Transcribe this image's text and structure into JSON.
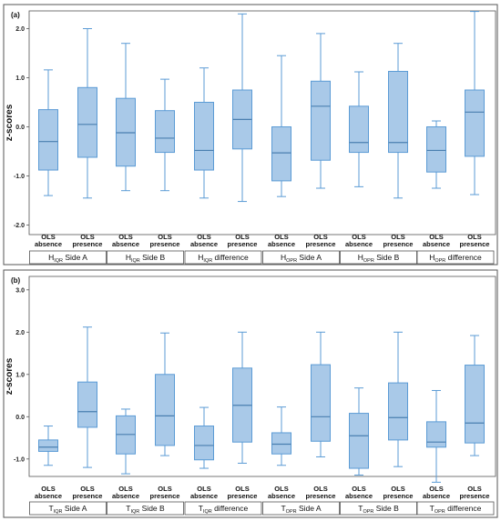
{
  "colors": {
    "box_fill": "#a9c9e8",
    "box_stroke": "#5b9bd5",
    "median": "#4a7fb0",
    "frame": "#555555"
  },
  "chart_data": [
    {
      "type": "boxplot",
      "panel_label": "(a)",
      "ylabel": "z-scores",
      "ylim": [
        -2.0,
        2.4
      ],
      "yticks": [
        2.0,
        1.0,
        0.0,
        -1.0,
        -2.0
      ],
      "ytick_labels": [
        "2.0",
        "1.0",
        "0.0",
        "-1.0",
        "-2.0"
      ],
      "groups": [
        {
          "main": "H",
          "sub": "IQR",
          "suffix": " Side A"
        },
        {
          "main": "H",
          "sub": "IQR",
          "suffix": " Side B"
        },
        {
          "main": "H",
          "sub": "IQR",
          "suffix": " difference"
        },
        {
          "main": "H",
          "sub": "OPR",
          "suffix": " Side A"
        },
        {
          "main": "H",
          "sub": "OPR",
          "suffix": " Side B"
        },
        {
          "main": "H",
          "sub": "OPR",
          "suffix": " difference"
        }
      ],
      "categories": [
        "OLS absence",
        "OLS presence"
      ],
      "boxes": [
        {
          "min": -1.4,
          "q1": -0.88,
          "median": -0.3,
          "q3": 0.35,
          "max": 1.16
        },
        {
          "min": -1.45,
          "q1": -0.62,
          "median": 0.05,
          "q3": 0.8,
          "max": 2.0
        },
        {
          "min": -1.3,
          "q1": -0.8,
          "median": -0.12,
          "q3": 0.58,
          "max": 1.7
        },
        {
          "min": -1.3,
          "q1": -0.52,
          "median": -0.23,
          "q3": 0.33,
          "max": 0.97
        },
        {
          "min": -1.45,
          "q1": -0.88,
          "median": -0.48,
          "q3": 0.5,
          "max": 1.2
        },
        {
          "min": -1.52,
          "q1": -0.45,
          "median": 0.15,
          "q3": 0.75,
          "max": 2.3
        },
        {
          "min": -1.42,
          "q1": -1.1,
          "median": -0.53,
          "q3": 0.0,
          "max": 1.45
        },
        {
          "min": -1.25,
          "q1": -0.68,
          "median": 0.42,
          "q3": 0.93,
          "max": 1.9
        },
        {
          "min": -1.22,
          "q1": -0.52,
          "median": -0.32,
          "q3": 0.42,
          "max": 1.12
        },
        {
          "min": -1.45,
          "q1": -0.52,
          "median": -0.32,
          "q3": 1.13,
          "max": 1.7
        },
        {
          "min": -1.25,
          "q1": -0.92,
          "median": -0.48,
          "q3": 0.0,
          "max": 0.12
        },
        {
          "min": -1.38,
          "q1": -0.6,
          "median": 0.3,
          "q3": 0.75,
          "max": 2.35
        }
      ]
    },
    {
      "type": "boxplot",
      "panel_label": "(b)",
      "ylabel": "z-scores",
      "ylim": [
        -1.65,
        3.3
      ],
      "yticks": [
        3.0,
        2.0,
        1.0,
        0.0,
        -1.0
      ],
      "ytick_labels": [
        "3.0",
        "2.0",
        "1.0",
        "0.0",
        "-1.0"
      ],
      "groups": [
        {
          "main": "T",
          "sub": "IQR",
          "suffix": " Side A"
        },
        {
          "main": "T",
          "sub": "IQR",
          "suffix": " Side B"
        },
        {
          "main": "T",
          "sub": "IQR",
          "suffix": " difference"
        },
        {
          "main": "T",
          "sub": "OPR",
          "suffix": " Side A"
        },
        {
          "main": "T",
          "sub": "OPR",
          "suffix": " Side B"
        },
        {
          "main": "T",
          "sub": "OPR",
          "suffix": " difference"
        }
      ],
      "categories": [
        "OLS absence",
        "OLS presence"
      ],
      "boxes": [
        {
          "min": -1.15,
          "q1": -0.82,
          "median": -0.72,
          "q3": -0.55,
          "max": -0.22
        },
        {
          "min": -1.2,
          "q1": -0.25,
          "median": 0.12,
          "q3": 0.82,
          "max": 2.12
        },
        {
          "min": -1.35,
          "q1": -0.88,
          "median": -0.42,
          "q3": 0.02,
          "max": 0.18
        },
        {
          "min": -0.92,
          "q1": -0.68,
          "median": 0.02,
          "q3": 1.0,
          "max": 1.98
        },
        {
          "min": -1.22,
          "q1": -1.02,
          "median": -0.68,
          "q3": -0.22,
          "max": 0.22
        },
        {
          "min": -1.1,
          "q1": -0.6,
          "median": 0.27,
          "q3": 1.15,
          "max": 2.0
        },
        {
          "min": -1.15,
          "q1": -0.88,
          "median": -0.65,
          "q3": -0.38,
          "max": 0.23
        },
        {
          "min": -0.95,
          "q1": -0.58,
          "median": 0.0,
          "q3": 1.23,
          "max": 2.0
        },
        {
          "min": -1.38,
          "q1": -1.22,
          "median": -0.45,
          "q3": 0.08,
          "max": 0.68
        },
        {
          "min": -1.18,
          "q1": -0.55,
          "median": -0.02,
          "q3": 0.8,
          "max": 2.0
        },
        {
          "min": -1.55,
          "q1": -0.72,
          "median": -0.6,
          "q3": -0.12,
          "max": 0.62
        },
        {
          "min": -0.92,
          "q1": -0.62,
          "median": -0.15,
          "q3": 1.22,
          "max": 1.92
        }
      ]
    }
  ]
}
